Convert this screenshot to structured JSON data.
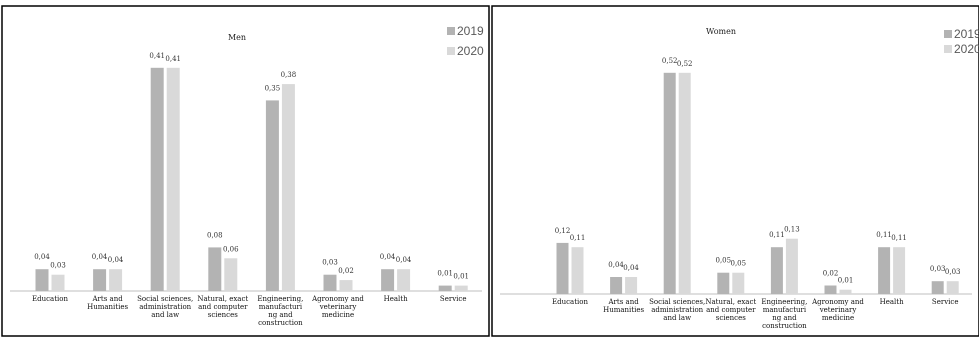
{
  "colors": {
    "2019": "#b3b3b3",
    "2020": "#d9d9d9"
  },
  "chart_data": [
    {
      "type": "bar",
      "title": "Men",
      "categories": [
        "Education",
        "Arts and Humanities",
        "Social sciences, administration and law",
        "Natural, exact and computer sciences",
        "Engineering, manufacturi ng and construction",
        "Agronomy and veterinary medicine",
        "Health",
        "Service"
      ],
      "category_lines": [
        [
          "Education"
        ],
        [
          "Arts and",
          "Humanities"
        ],
        [
          "Social sciences,",
          "administration",
          "and law"
        ],
        [
          "Natural, exact",
          "and computer",
          "sciences"
        ],
        [
          "Engineering,",
          "manufacturi",
          "ng and",
          "construction"
        ],
        [
          "Agronomy and",
          "veterinary",
          "medicine"
        ],
        [
          "Health"
        ],
        [
          "Service"
        ]
      ],
      "series": [
        {
          "name": "2019",
          "values": [
            0.04,
            0.04,
            0.41,
            0.08,
            0.35,
            0.03,
            0.04,
            0.01
          ],
          "labels": [
            "0,04",
            "0,04",
            "0,41",
            "0,08",
            "0,35",
            "0,03",
            "0,04",
            "0,01"
          ]
        },
        {
          "name": "2020",
          "values": [
            0.03,
            0.04,
            0.41,
            0.06,
            0.38,
            0.02,
            0.04,
            0.01
          ],
          "labels": [
            "0,03",
            "0,04",
            "0,41",
            "0,06",
            "0,38",
            "0,02",
            "0,04",
            "0,01"
          ]
        }
      ],
      "ylim": [
        0,
        0.45
      ],
      "legend": "top-right",
      "grid": false
    },
    {
      "type": "bar",
      "title": "Women",
      "categories": [
        "Education",
        "Arts and Humanities",
        "Social sciences, administration and law",
        "Natural, exact and computer sciences",
        "Engineering, manufacturi ng and construction",
        "Agronomy and veterinary medicine",
        "Health",
        "Service"
      ],
      "category_lines": [
        [
          "Education"
        ],
        [
          "Arts and",
          "Humanities"
        ],
        [
          "Social sciences,",
          "administration",
          "and law"
        ],
        [
          "Natural, exact",
          "and computer",
          "sciences"
        ],
        [
          "Engineering,",
          "manufacturi",
          "ng and",
          "construction"
        ],
        [
          "Agronomy and",
          "veterinary",
          "medicine"
        ],
        [
          "Health"
        ],
        [
          "Service"
        ]
      ],
      "series": [
        {
          "name": "2019",
          "values": [
            0.12,
            0.04,
            0.52,
            0.05,
            0.11,
            0.02,
            0.11,
            0.03
          ],
          "labels": [
            "0,12",
            "0,04",
            "0,52",
            "0,05",
            "0,11",
            "0,02",
            "0,11",
            "0,03"
          ]
        },
        {
          "name": "2020",
          "values": [
            0.11,
            0.04,
            0.52,
            0.05,
            0.13,
            0.01,
            0.11,
            0.03
          ],
          "labels": [
            "0,11",
            "0,04",
            "0,52",
            "0,05",
            "0,13",
            "0,01",
            "0,11",
            "0,03"
          ]
        }
      ],
      "ylim": [
        0,
        0.55
      ],
      "legend": "top-right",
      "grid": false
    }
  ]
}
